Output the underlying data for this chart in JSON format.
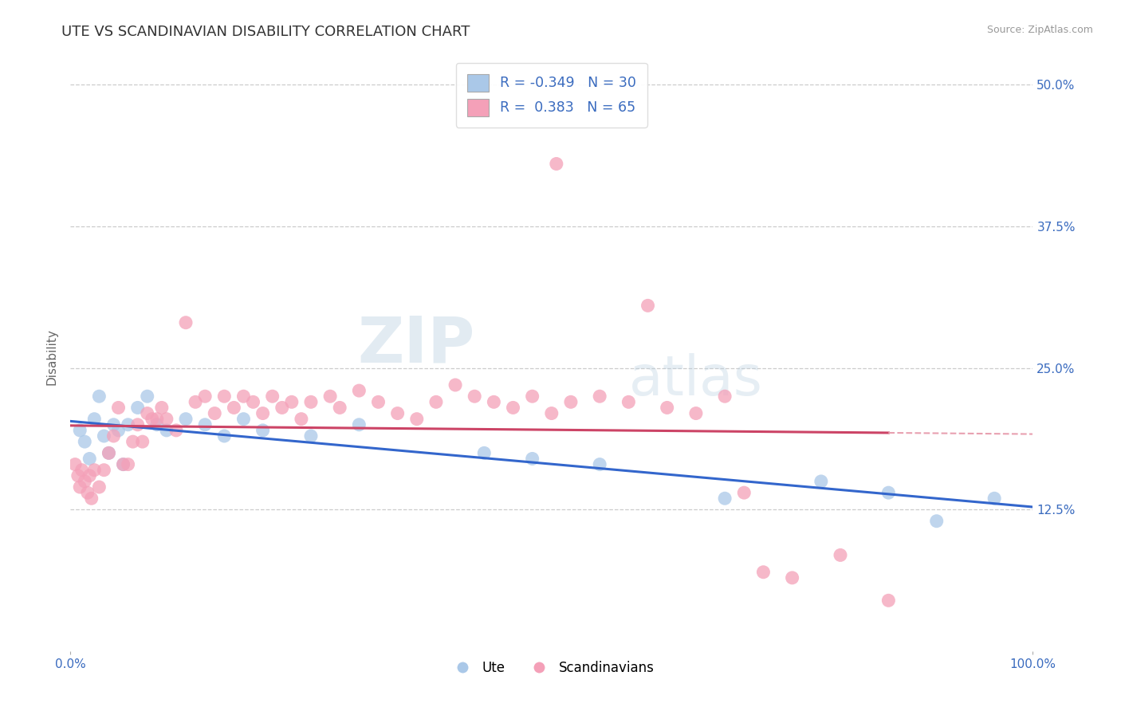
{
  "title": "UTE VS SCANDINAVIAN DISABILITY CORRELATION CHART",
  "source": "Source: ZipAtlas.com",
  "ylabel": "Disability",
  "xlim": [
    0.0,
    100.0
  ],
  "ylim": [
    0.0,
    52.0
  ],
  "yticks": [
    0.0,
    12.5,
    25.0,
    37.5,
    50.0
  ],
  "ute_R": "-0.349",
  "ute_N": "30",
  "scan_R": "0.383",
  "scan_N": "65",
  "ute_color": "#aac8e8",
  "scan_color": "#f4a0b8",
  "ute_line_color": "#3366cc",
  "scan_line_color": "#cc4466",
  "scan_line_dashed_color": "#e8a0b0",
  "background_color": "#ffffff",
  "watermark_zip": "ZIP",
  "watermark_atlas": "atlas",
  "title_fontsize": 13,
  "label_fontsize": 11,
  "tick_fontsize": 11,
  "ute_x": [
    1.0,
    1.5,
    2.0,
    2.5,
    3.0,
    3.5,
    4.0,
    4.5,
    5.0,
    5.5,
    6.0,
    7.0,
    8.0,
    9.0,
    10.0,
    12.0,
    14.0,
    16.0,
    18.0,
    20.0,
    25.0,
    30.0,
    43.0,
    48.0,
    55.0,
    68.0,
    78.0,
    85.0,
    90.0,
    96.0
  ],
  "ute_y": [
    19.5,
    18.5,
    17.0,
    20.5,
    22.5,
    19.0,
    17.5,
    20.0,
    19.5,
    16.5,
    20.0,
    21.5,
    22.5,
    20.0,
    19.5,
    20.5,
    20.0,
    19.0,
    20.5,
    19.5,
    19.0,
    20.0,
    17.5,
    17.0,
    16.5,
    13.5,
    15.0,
    14.0,
    11.5,
    13.5
  ],
  "scan_x": [
    0.5,
    0.8,
    1.0,
    1.2,
    1.5,
    1.8,
    2.0,
    2.2,
    2.5,
    3.0,
    3.5,
    4.0,
    4.5,
    5.0,
    5.5,
    6.0,
    6.5,
    7.0,
    7.5,
    8.0,
    8.5,
    9.0,
    9.5,
    10.0,
    11.0,
    12.0,
    13.0,
    14.0,
    15.0,
    16.0,
    17.0,
    18.0,
    19.0,
    20.0,
    21.0,
    22.0,
    23.0,
    24.0,
    25.0,
    27.0,
    28.0,
    30.0,
    32.0,
    34.0,
    36.0,
    38.0,
    40.0,
    42.0,
    44.0,
    46.0,
    48.0,
    50.0,
    50.5,
    52.0,
    55.0,
    58.0,
    60.0,
    62.0,
    65.0,
    68.0,
    70.0,
    72.0,
    75.0,
    80.0,
    85.0
  ],
  "scan_y": [
    16.5,
    15.5,
    14.5,
    16.0,
    15.0,
    14.0,
    15.5,
    13.5,
    16.0,
    14.5,
    16.0,
    17.5,
    19.0,
    21.5,
    16.5,
    16.5,
    18.5,
    20.0,
    18.5,
    21.0,
    20.5,
    20.5,
    21.5,
    20.5,
    19.5,
    29.0,
    22.0,
    22.5,
    21.0,
    22.5,
    21.5,
    22.5,
    22.0,
    21.0,
    22.5,
    21.5,
    22.0,
    20.5,
    22.0,
    22.5,
    21.5,
    23.0,
    22.0,
    21.0,
    20.5,
    22.0,
    23.5,
    22.5,
    22.0,
    21.5,
    22.5,
    21.0,
    43.0,
    22.0,
    22.5,
    22.0,
    30.5,
    21.5,
    21.0,
    22.5,
    14.0,
    7.0,
    6.5,
    8.5,
    4.5
  ],
  "scan_line_solid_end": 62.0
}
